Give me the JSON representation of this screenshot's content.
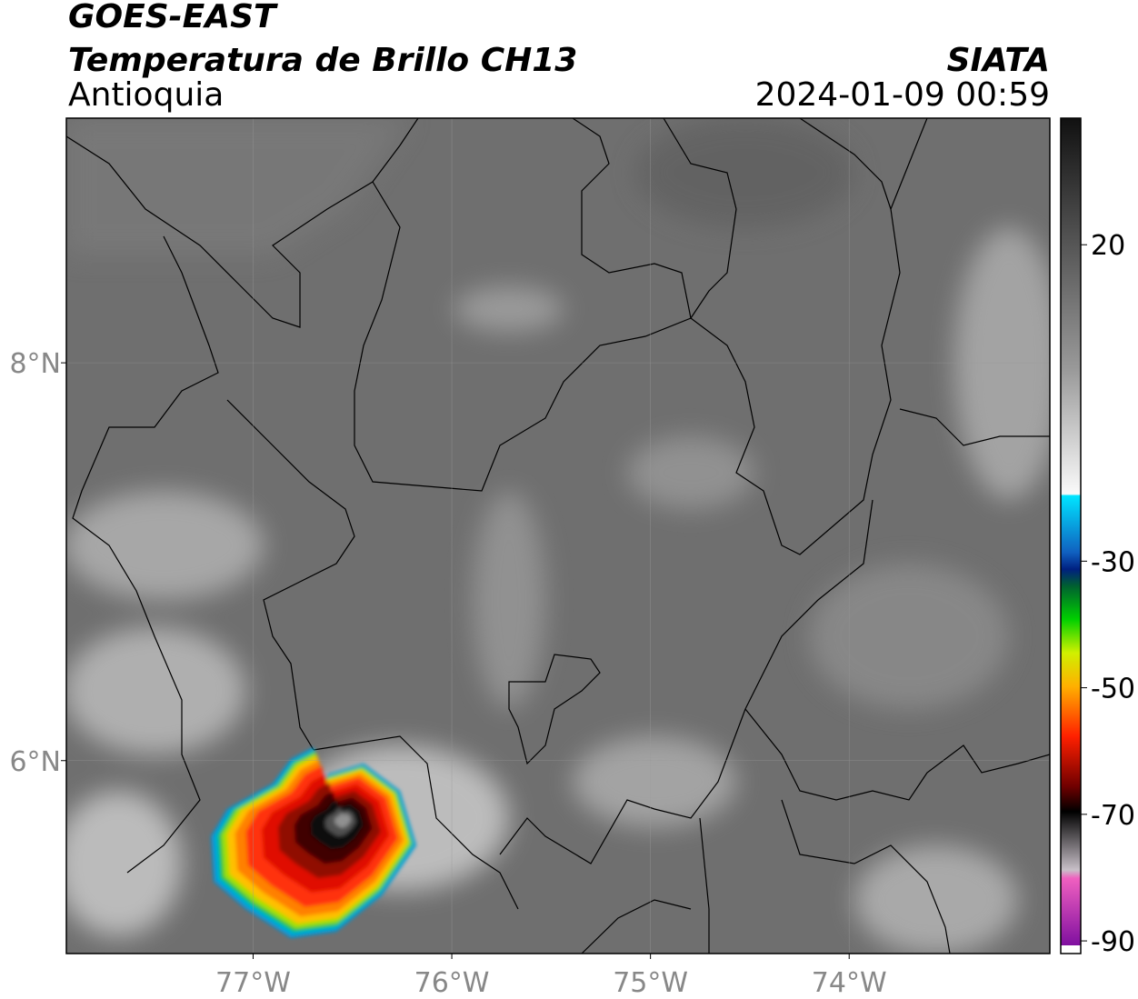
{
  "header": {
    "satellite": "GOES-EAST",
    "product": "Temperatura de Brillo CH13",
    "region": "Antioquia",
    "source": "SIATA",
    "datetime": "2024-01-09 00:59"
  },
  "map": {
    "xlim": [
      -77.94,
      -72.99
    ],
    "ylim": [
      5.03,
      9.23
    ],
    "xticks": [
      {
        "value": -77,
        "label": "77°W"
      },
      {
        "value": -76,
        "label": "76°W"
      },
      {
        "value": -75,
        "label": "75°W"
      },
      {
        "value": -74,
        "label": "74°W"
      }
    ],
    "yticks": [
      {
        "value": 8,
        "label": "8°N"
      },
      {
        "value": 6,
        "label": "6°N"
      }
    ]
  },
  "colorbar": {
    "lim": [
      -92,
      40
    ],
    "ticks": [
      20,
      -30,
      -50,
      -70,
      -90
    ]
  }
}
